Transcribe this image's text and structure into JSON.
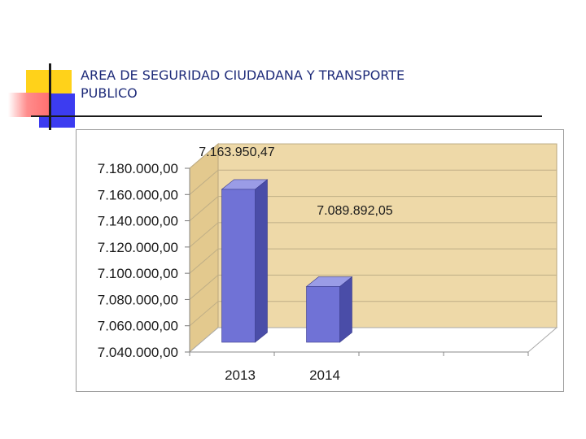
{
  "slide": {
    "title_line1": "AREA DE SEGURIDAD CIUDADANA Y TRANSPORTE",
    "title_line2": "PUBLICO"
  },
  "colors": {
    "title": "#1f2c7a",
    "bar_front": "#7072d6",
    "bar_side": "#4a4da8",
    "bar_top": "#9a9ce6",
    "wall": "#eed9a8",
    "floor": "#ffffff"
  },
  "chart_data": {
    "type": "bar",
    "style": "3d-column",
    "categories": [
      "2013",
      "2014"
    ],
    "values": [
      7163950.47,
      7089892.05
    ],
    "data_labels": [
      "7.163.950,47",
      "7.089.892,05"
    ],
    "y_ticks": [
      7040000,
      7060000,
      7080000,
      7100000,
      7120000,
      7140000,
      7160000,
      7180000
    ],
    "y_tick_labels": [
      "7.040.000,00",
      "7.060.000,00",
      "7.080.000,00",
      "7.100.000,00",
      "7.120.000,00",
      "7.140.000,00",
      "7.160.000,00",
      "7.180.000,00"
    ],
    "ylim": [
      7040000,
      7180000
    ],
    "grid": true,
    "legend": "none"
  }
}
